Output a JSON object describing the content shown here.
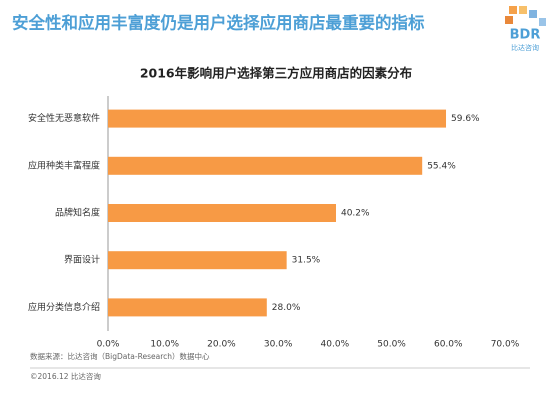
{
  "header": {
    "title": "安全性和应用丰富度仍是用户选择应用商店最重要的指标",
    "logo_text": "BDR",
    "logo_subtext": "比达咨询"
  },
  "chart_data": {
    "type": "barh",
    "title": "2016年影响用户选择第三方应用商店的因素分布",
    "categories": [
      "安全性无恶意软件",
      "应用种类丰富程度",
      "品牌知名度",
      "界面设计",
      "应用分类信息介绍"
    ],
    "values": [
      59.6,
      55.4,
      40.2,
      31.5,
      28.0
    ],
    "value_labels": [
      "59.6%",
      "55.4%",
      "40.2%",
      "31.5%",
      "28.0%"
    ],
    "color": "#f79a45",
    "xlim": [
      0,
      70
    ],
    "xticks": [
      {
        "value": 0,
        "label": "0.0%"
      },
      {
        "value": 10,
        "label": "10.0%"
      },
      {
        "value": 20,
        "label": "20.0%"
      },
      {
        "value": 30,
        "label": "30.0%"
      },
      {
        "value": 40,
        "label": "40.0%"
      },
      {
        "value": 50,
        "label": "50.0%"
      },
      {
        "value": 60,
        "label": "60.0%"
      },
      {
        "value": 70,
        "label": "70.0%"
      }
    ],
    "grid": false
  },
  "footer": {
    "source": "数据来源：比达咨询（BigData-Research）数据中心",
    "copyright": "©2016.12 比达咨询"
  }
}
